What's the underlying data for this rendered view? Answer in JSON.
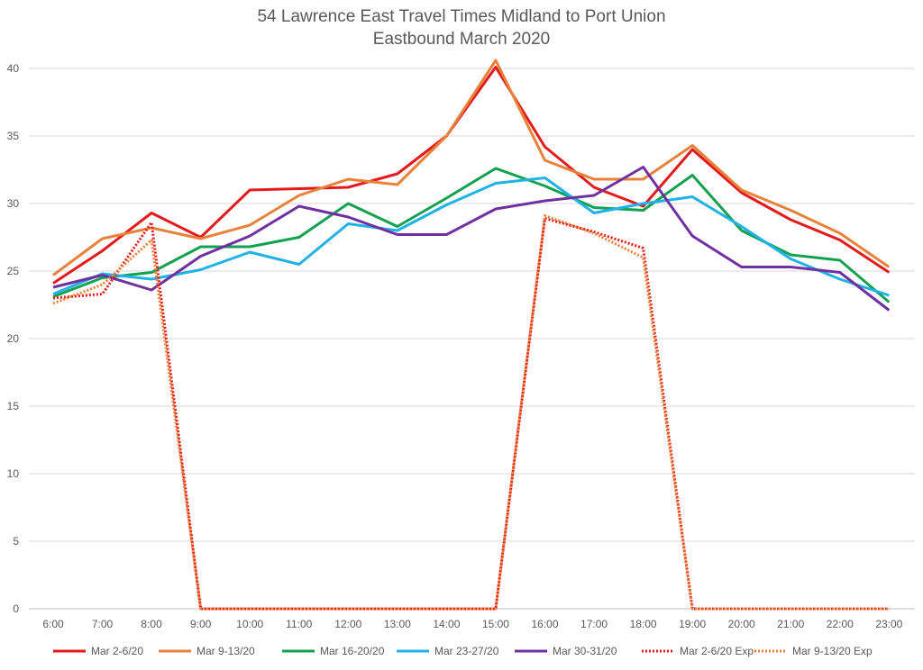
{
  "chart_data": {
    "type": "line",
    "title": "54 Lawrence East Travel Times Midland to Port Union",
    "subtitle": "Eastbound  March 2020",
    "xlabel": "",
    "ylabel": "",
    "ylim": [
      0,
      40
    ],
    "yticks": [
      0,
      5,
      10,
      15,
      20,
      25,
      30,
      35,
      40
    ],
    "grid": true,
    "legend_position": "bottom",
    "x": [
      "6:00",
      "7:00",
      "8:00",
      "9:00",
      "10:00",
      "11:00",
      "12:00",
      "13:00",
      "14:00",
      "15:00",
      "16:00",
      "17:00",
      "18:00",
      "19:00",
      "20:00",
      "21:00",
      "22:00",
      "23:00"
    ],
    "series": [
      {
        "name": "Mar 2-6/20",
        "color": "#e31a1c",
        "style": "solid",
        "values": [
          24.1,
          26.5,
          29.3,
          27.5,
          31.0,
          31.1,
          31.2,
          32.2,
          35.0,
          40.1,
          34.2,
          31.2,
          29.8,
          34.0,
          30.8,
          28.8,
          27.3,
          24.9
        ]
      },
      {
        "name": "Mar 9-13/20",
        "color": "#e8823a",
        "style": "solid",
        "values": [
          24.7,
          27.4,
          28.2,
          27.4,
          28.4,
          30.6,
          31.8,
          31.4,
          35.0,
          40.6,
          33.2,
          31.8,
          31.8,
          34.3,
          31.0,
          29.5,
          27.8,
          25.3
        ]
      },
      {
        "name": "Mar 16-20/20",
        "color": "#12a150",
        "style": "solid",
        "values": [
          23.1,
          24.5,
          24.9,
          26.8,
          26.8,
          27.5,
          30.0,
          28.3,
          30.4,
          32.6,
          31.3,
          29.7,
          29.5,
          32.1,
          28.0,
          26.2,
          25.8,
          22.7
        ]
      },
      {
        "name": "Mar 23-27/20",
        "color": "#1fb2e7",
        "style": "solid",
        "values": [
          23.3,
          24.8,
          24.4,
          25.1,
          26.4,
          25.5,
          28.5,
          28.0,
          29.9,
          31.5,
          31.9,
          29.3,
          30.0,
          30.5,
          28.3,
          25.9,
          24.4,
          23.2
        ]
      },
      {
        "name": "Mar 30-31/20",
        "color": "#7030a0",
        "style": "solid",
        "values": [
          23.8,
          24.7,
          23.6,
          26.1,
          27.6,
          29.8,
          29.0,
          27.7,
          27.7,
          29.6,
          30.2,
          30.6,
          32.7,
          27.6,
          25.3,
          25.3,
          24.9,
          22.1
        ]
      },
      {
        "name": "Mar 2-6/20 Exp",
        "color": "#e31a1c",
        "style": "dotted",
        "values": [
          23.0,
          23.3,
          28.6,
          0,
          0,
          0,
          0,
          0,
          0,
          0,
          28.9,
          27.9,
          26.7,
          0,
          0,
          0,
          0,
          0
        ]
      },
      {
        "name": "Mar 9-13/20 Exp",
        "color": "#e8823a",
        "style": "dotted",
        "values": [
          22.6,
          24.0,
          27.3,
          0,
          0,
          0,
          0,
          0,
          0,
          0,
          29.1,
          27.8,
          26.0,
          0,
          0,
          0,
          0,
          0
        ]
      }
    ]
  }
}
